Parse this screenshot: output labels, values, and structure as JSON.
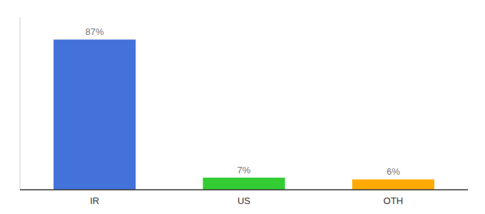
{
  "chart_data": {
    "type": "bar",
    "categories": [
      "IR",
      "US",
      "OTH"
    ],
    "values": [
      87,
      7,
      6
    ],
    "value_labels": [
      "87%",
      "7%",
      "6%"
    ],
    "colors": [
      "#4472db",
      "#33cc33",
      "#ffaa00"
    ],
    "ylim": [
      0,
      100
    ],
    "data_labels": true,
    "tick_labels": "x"
  }
}
